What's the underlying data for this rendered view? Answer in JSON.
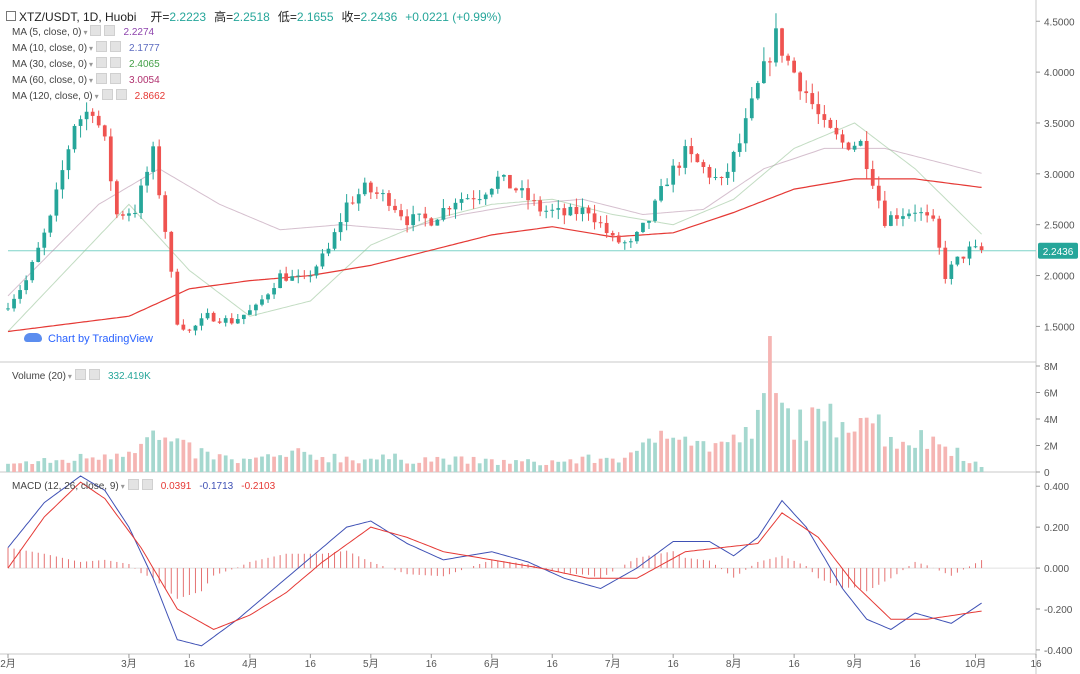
{
  "header": {
    "symbol": "XTZ/USDT, 1D, Huobi",
    "open_label": "开=",
    "open": "2.2223",
    "high_label": "高=",
    "high": "2.2518",
    "low_label": "低=",
    "low": "2.1655",
    "close_label": "收=",
    "close": "2.2436",
    "change": "+0.0221 (+0.99%)"
  },
  "ma_indicators": [
    {
      "label": "MA (5, close, 0)",
      "value": "2.2274",
      "color": "#8e44ad"
    },
    {
      "label": "MA (10, close, 0)",
      "value": "2.1777",
      "color": "#5c6bc0"
    },
    {
      "label": "MA (30, close, 0)",
      "value": "2.4065",
      "color": "#43a047"
    },
    {
      "label": "MA (60, close, 0)",
      "value": "3.0054",
      "color": "#b0306e"
    },
    {
      "label": "MA (120, close, 0)",
      "value": "2.8662",
      "color": "#e53935"
    }
  ],
  "volume_label": "Volume (20)",
  "volume_value": "332.419K",
  "macd_label": "MACD (12, 26, close, 9)",
  "macd_values": [
    "0.0391",
    "-0.1713",
    "-0.2103"
  ],
  "watermark": "Chart by TradingView",
  "colors": {
    "up": "#26a69a",
    "down": "#ef5350",
    "up_vol": "#a5d8cf",
    "down_vol": "#f5b5b3",
    "ma120": "#e53935",
    "macd": "#3f51b5",
    "signal": "#e53935",
    "grid": "#c9c9c9"
  },
  "chart_data": {
    "type": "candlestick",
    "title": "XTZ/USDT, 1D, Huobi",
    "current_price": 2.2436,
    "price_axis": {
      "ticks": [
        1.5,
        2.0,
        2.5,
        3.0,
        3.5,
        4.0,
        4.5
      ],
      "tick_labels": [
        "1.5000",
        "2.0000",
        "2.5000",
        "3.0000",
        "3.5000",
        "4.0000",
        "4.5000"
      ],
      "range": [
        1.15,
        4.65
      ]
    },
    "volume_axis": {
      "ticks": [
        0,
        2,
        4,
        6,
        8
      ],
      "tick_labels": [
        "0",
        "2M",
        "4M",
        "6M",
        "8M"
      ],
      "range": [
        0,
        8
      ]
    },
    "macd_axis": {
      "ticks": [
        -0.4,
        -0.2,
        0,
        0.2,
        0.4
      ],
      "tick_labels": [
        "-0.400",
        "-0.200",
        "0.000",
        "0.200",
        "0.400"
      ],
      "range": [
        -0.42,
        0.45
      ]
    },
    "x_axis": {
      "range_days": [
        0,
        170
      ],
      "ticks": [
        {
          "day": 0,
          "label": "2月"
        },
        {
          "day": 20,
          "label": "3月"
        },
        {
          "day": 30,
          "label": "16"
        },
        {
          "day": 40,
          "label": "4月"
        },
        {
          "day": 50,
          "label": "16"
        },
        {
          "day": 60,
          "label": "5月"
        },
        {
          "day": 70,
          "label": "16"
        },
        {
          "day": 80,
          "label": "6月"
        },
        {
          "day": 90,
          "label": "16"
        },
        {
          "day": 100,
          "label": "7月"
        },
        {
          "day": 110,
          "label": "16"
        },
        {
          "day": 120,
          "label": "8月"
        },
        {
          "day": 130,
          "label": "16"
        },
        {
          "day": 140,
          "label": "9月"
        },
        {
          "day": 150,
          "label": "16"
        },
        {
          "day": 160,
          "label": "10月"
        },
        {
          "day": 170,
          "label": "16"
        }
      ]
    },
    "close_keypoints": [
      [
        0,
        1.72
      ],
      [
        3,
        1.95
      ],
      [
        7,
        2.55
      ],
      [
        11,
        3.5
      ],
      [
        14,
        3.65
      ],
      [
        16,
        3.3
      ],
      [
        18,
        2.6
      ],
      [
        21,
        2.65
      ],
      [
        24,
        3.2
      ],
      [
        26,
        2.45
      ],
      [
        28,
        1.55
      ],
      [
        30,
        1.45
      ],
      [
        33,
        1.6
      ],
      [
        37,
        1.55
      ],
      [
        41,
        1.68
      ],
      [
        45,
        2.0
      ],
      [
        49,
        1.95
      ],
      [
        53,
        2.25
      ],
      [
        56,
        2.7
      ],
      [
        59,
        2.85
      ],
      [
        63,
        2.75
      ],
      [
        66,
        2.55
      ],
      [
        70,
        2.55
      ],
      [
        74,
        2.75
      ],
      [
        78,
        2.8
      ],
      [
        81,
        2.95
      ],
      [
        84,
        2.85
      ],
      [
        88,
        2.65
      ],
      [
        92,
        2.6
      ],
      [
        96,
        2.65
      ],
      [
        100,
        2.35
      ],
      [
        103,
        2.3
      ],
      [
        106,
        2.55
      ],
      [
        109,
        2.95
      ],
      [
        112,
        3.2
      ],
      [
        115,
        3.05
      ],
      [
        118,
        2.9
      ],
      [
        121,
        3.3
      ],
      [
        124,
        3.85
      ],
      [
        127,
        4.35
      ],
      [
        129,
        4.1
      ],
      [
        132,
        3.8
      ],
      [
        135,
        3.45
      ],
      [
        138,
        3.3
      ],
      [
        141,
        3.3
      ],
      [
        143,
        2.95
      ],
      [
        145,
        2.55
      ],
      [
        147,
        2.6
      ],
      [
        150,
        2.65
      ],
      [
        153,
        2.5
      ],
      [
        155,
        2.0
      ],
      [
        157,
        2.15
      ],
      [
        159,
        2.25
      ],
      [
        161,
        2.2436
      ]
    ],
    "ma_keypoints": {
      "ma30": [
        [
          0,
          1.45
        ],
        [
          20,
          2.7
        ],
        [
          30,
          2.05
        ],
        [
          40,
          1.6
        ],
        [
          50,
          1.75
        ],
        [
          60,
          2.3
        ],
        [
          70,
          2.55
        ],
        [
          80,
          2.7
        ],
        [
          90,
          2.75
        ],
        [
          100,
          2.6
        ],
        [
          110,
          2.5
        ],
        [
          120,
          2.75
        ],
        [
          130,
          3.25
        ],
        [
          140,
          3.5
        ],
        [
          150,
          3.05
        ],
        [
          161,
          2.4065
        ]
      ],
      "ma60": [
        [
          0,
          1.8
        ],
        [
          15,
          2.7
        ],
        [
          25,
          3.05
        ],
        [
          35,
          2.7
        ],
        [
          45,
          2.45
        ],
        [
          55,
          2.5
        ],
        [
          65,
          2.45
        ],
        [
          75,
          2.6
        ],
        [
          85,
          2.7
        ],
        [
          95,
          2.75
        ],
        [
          105,
          2.6
        ],
        [
          115,
          2.65
        ],
        [
          125,
          3.05
        ],
        [
          135,
          3.25
        ],
        [
          145,
          3.25
        ],
        [
          161,
          3.0054
        ]
      ],
      "ma120": [
        [
          0,
          1.45
        ],
        [
          20,
          1.6
        ],
        [
          30,
          1.87
        ],
        [
          40,
          1.95
        ],
        [
          50,
          2.0
        ],
        [
          60,
          2.1
        ],
        [
          70,
          2.25
        ],
        [
          80,
          2.4
        ],
        [
          90,
          2.48
        ],
        [
          100,
          2.38
        ],
        [
          110,
          2.42
        ],
        [
          120,
          2.62
        ],
        [
          130,
          2.85
        ],
        [
          140,
          2.95
        ],
        [
          150,
          2.95
        ],
        [
          161,
          2.8662
        ]
      ]
    },
    "volume_keypoints": [
      [
        0,
        0.6
      ],
      [
        10,
        0.9
      ],
      [
        18,
        1.5
      ],
      [
        24,
        2.6
      ],
      [
        30,
        1.6
      ],
      [
        38,
        0.8
      ],
      [
        48,
        1.3
      ],
      [
        58,
        1.0
      ],
      [
        68,
        1.0
      ],
      [
        78,
        0.8
      ],
      [
        88,
        0.7
      ],
      [
        98,
        1.0
      ],
      [
        104,
        1.2
      ],
      [
        108,
        3.2
      ],
      [
        110,
        4.0
      ],
      [
        114,
        2.0
      ],
      [
        120,
        2.2
      ],
      [
        124,
        3.5
      ],
      [
        126,
        7.8
      ],
      [
        128,
        4.3
      ],
      [
        134,
        3.5
      ],
      [
        140,
        4.6
      ],
      [
        142,
        4.5
      ],
      [
        146,
        2.5
      ],
      [
        152,
        2.4
      ],
      [
        156,
        2.0
      ],
      [
        161,
        0.33
      ]
    ],
    "macd_keypoints": [
      [
        0,
        0.1
      ],
      [
        6,
        0.32
      ],
      [
        12,
        0.45
      ],
      [
        16,
        0.38
      ],
      [
        20,
        0.2
      ],
      [
        24,
        -0.05
      ],
      [
        28,
        -0.35
      ],
      [
        32,
        -0.38
      ],
      [
        38,
        -0.25
      ],
      [
        44,
        -0.1
      ],
      [
        50,
        0.05
      ],
      [
        56,
        0.2
      ],
      [
        60,
        0.23
      ],
      [
        66,
        0.12
      ],
      [
        72,
        0.04
      ],
      [
        80,
        0.08
      ],
      [
        86,
        0.03
      ],
      [
        92,
        -0.05
      ],
      [
        98,
        -0.1
      ],
      [
        104,
        0.0
      ],
      [
        110,
        0.13
      ],
      [
        116,
        0.13
      ],
      [
        120,
        0.06
      ],
      [
        124,
        0.15
      ],
      [
        128,
        0.33
      ],
      [
        132,
        0.2
      ],
      [
        138,
        -0.1
      ],
      [
        142,
        -0.25
      ],
      [
        146,
        -0.3
      ],
      [
        150,
        -0.22
      ],
      [
        156,
        -0.27
      ],
      [
        161,
        -0.1713
      ]
    ],
    "signal_keypoints": [
      [
        0,
        0.0
      ],
      [
        6,
        0.25
      ],
      [
        12,
        0.42
      ],
      [
        16,
        0.34
      ],
      [
        22,
        0.1
      ],
      [
        28,
        -0.2
      ],
      [
        34,
        -0.3
      ],
      [
        40,
        -0.23
      ],
      [
        46,
        -0.12
      ],
      [
        52,
        0.03
      ],
      [
        60,
        0.2
      ],
      [
        66,
        0.15
      ],
      [
        72,
        0.08
      ],
      [
        80,
        0.04
      ],
      [
        88,
        0.0
      ],
      [
        96,
        -0.05
      ],
      [
        104,
        -0.05
      ],
      [
        112,
        0.08
      ],
      [
        118,
        0.1
      ],
      [
        124,
        0.12
      ],
      [
        128,
        0.27
      ],
      [
        134,
        0.15
      ],
      [
        140,
        -0.08
      ],
      [
        146,
        -0.25
      ],
      [
        152,
        -0.25
      ],
      [
        161,
        -0.2103
      ]
    ]
  }
}
